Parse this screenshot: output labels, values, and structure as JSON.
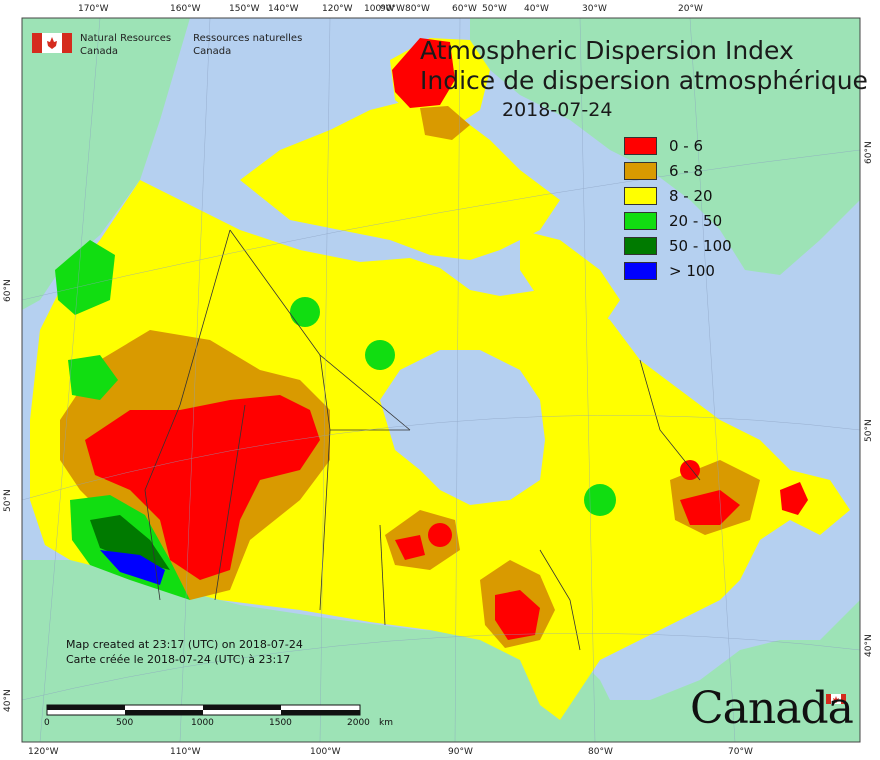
{
  "map": {
    "title_en": "Atmospheric Dispersion Index",
    "title_fr": "Indice de dispersion atmosphérique",
    "date": "2018-07-24",
    "agency_en": [
      "Natural Resources",
      "Canada"
    ],
    "agency_fr": [
      "Ressources naturelles",
      "Canada"
    ],
    "created_en": "Map created at 23:17 (UTC) on 2018-07-24",
    "created_fr": "Carte créée le 2018-07-24 (UTC) à 23:17",
    "wordmark": "Canada",
    "legend": [
      {
        "label": "0 - 6",
        "color": "#ff0000"
      },
      {
        "label": "6 - 8",
        "color": "#d99a00"
      },
      {
        "label": "8 - 20",
        "color": "#ffff00"
      },
      {
        "label": "20 - 50",
        "color": "#11dd11"
      },
      {
        "label": "50 - 100",
        "color": "#007a00"
      },
      {
        "label": "> 100",
        "color": "#0000ff"
      }
    ],
    "scale_labels": [
      "0",
      "500",
      "1000",
      "1500",
      "2000",
      "km"
    ],
    "top_ticks": [
      "170°W",
      "160°W",
      "150°W",
      "140°W",
      "120°W",
      "100°W",
      "90°W",
      "80°W",
      "60°W",
      "50°W",
      "40°W",
      "30°W",
      "20°W"
    ],
    "bottom_ticks": [
      "120°W",
      "110°W",
      "100°W",
      "90°W",
      "80°W",
      "70°W"
    ],
    "left_ticks": [
      "60°N",
      "50°N",
      "40°N"
    ],
    "right_ticks": [
      "60°N",
      "50°N",
      "40°N"
    ],
    "colors": {
      "ocean": "#b5d0f0",
      "land_other": "#9de3b6",
      "border": "#333333",
      "frame": "#444444"
    }
  }
}
